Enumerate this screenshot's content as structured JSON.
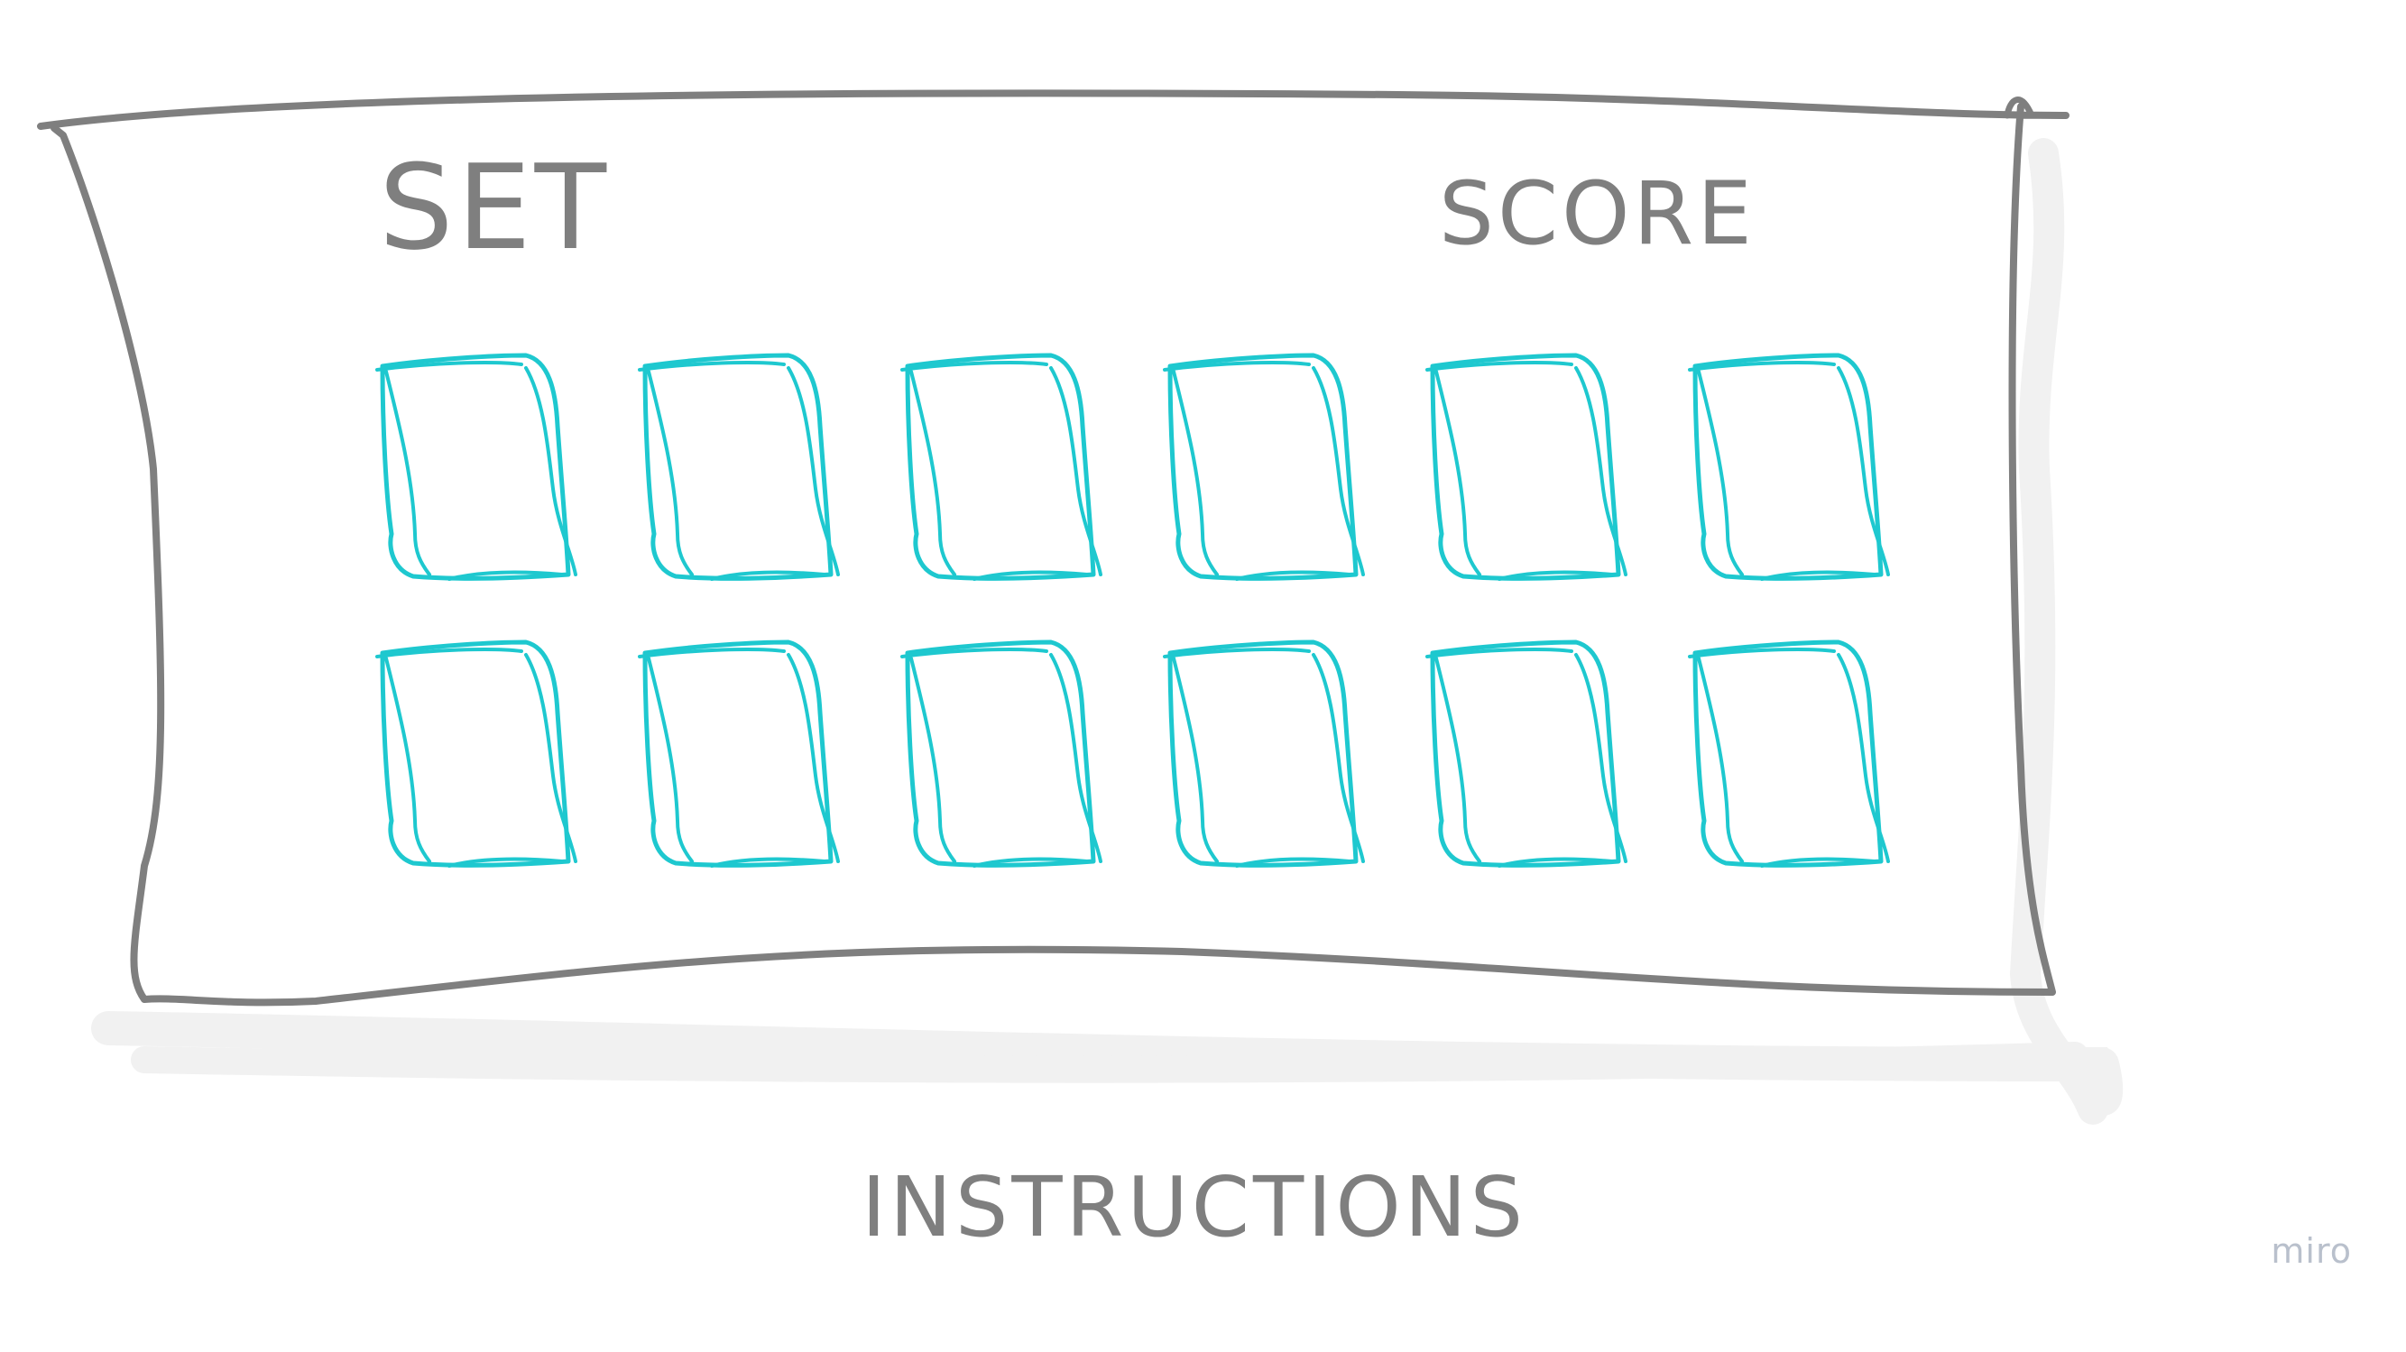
{
  "labels": {
    "set": "SET",
    "score": "SCORE",
    "instructions": "INSTRUCTIONS"
  },
  "watermark": "miro",
  "cards": {
    "rows": 2,
    "cols": 6,
    "color": "#1ec8cf"
  },
  "colors": {
    "ink": "#7f7f7f",
    "shadow": "#f1f1f1",
    "card": "#1ec8cf",
    "watermark": "#b9c0cc"
  }
}
